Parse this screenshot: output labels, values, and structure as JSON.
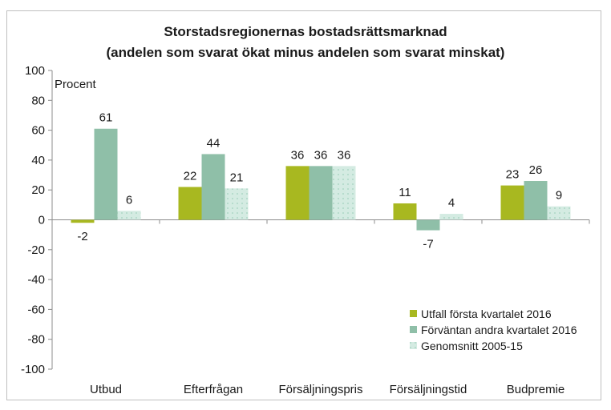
{
  "chart_data": {
    "type": "bar",
    "title": "Storstadsregionernas bostadsrättsmarknad",
    "subtitle": "(andelen som svarat ökat minus andelen som svarat minskat)",
    "ylabel": "Procent",
    "xlabel": "",
    "ylim": [
      -100,
      100
    ],
    "yticks": [
      100,
      80,
      60,
      40,
      20,
      0,
      -20,
      -40,
      -60,
      -80,
      -100
    ],
    "grid": false,
    "legend_position": "bottom-right",
    "categories": [
      "Utbud",
      "Efterfrågan",
      "Försäljningspris",
      "Försäljningstid",
      "Budpremie"
    ],
    "series": [
      {
        "name": "Utfall första kvartalet 2016",
        "color": "#a8b820",
        "pattern": "solid",
        "values": [
          -2,
          22,
          36,
          11,
          23
        ]
      },
      {
        "name": "Förväntan andra kvartalet 2016",
        "color": "#8fbfa8",
        "pattern": "solid",
        "values": [
          61,
          44,
          36,
          -7,
          26
        ]
      },
      {
        "name": "Genomsnitt 2005-15",
        "color": "#d4ebe2",
        "pattern": "dotted",
        "values": [
          6,
          21,
          36,
          4,
          9
        ]
      }
    ]
  }
}
